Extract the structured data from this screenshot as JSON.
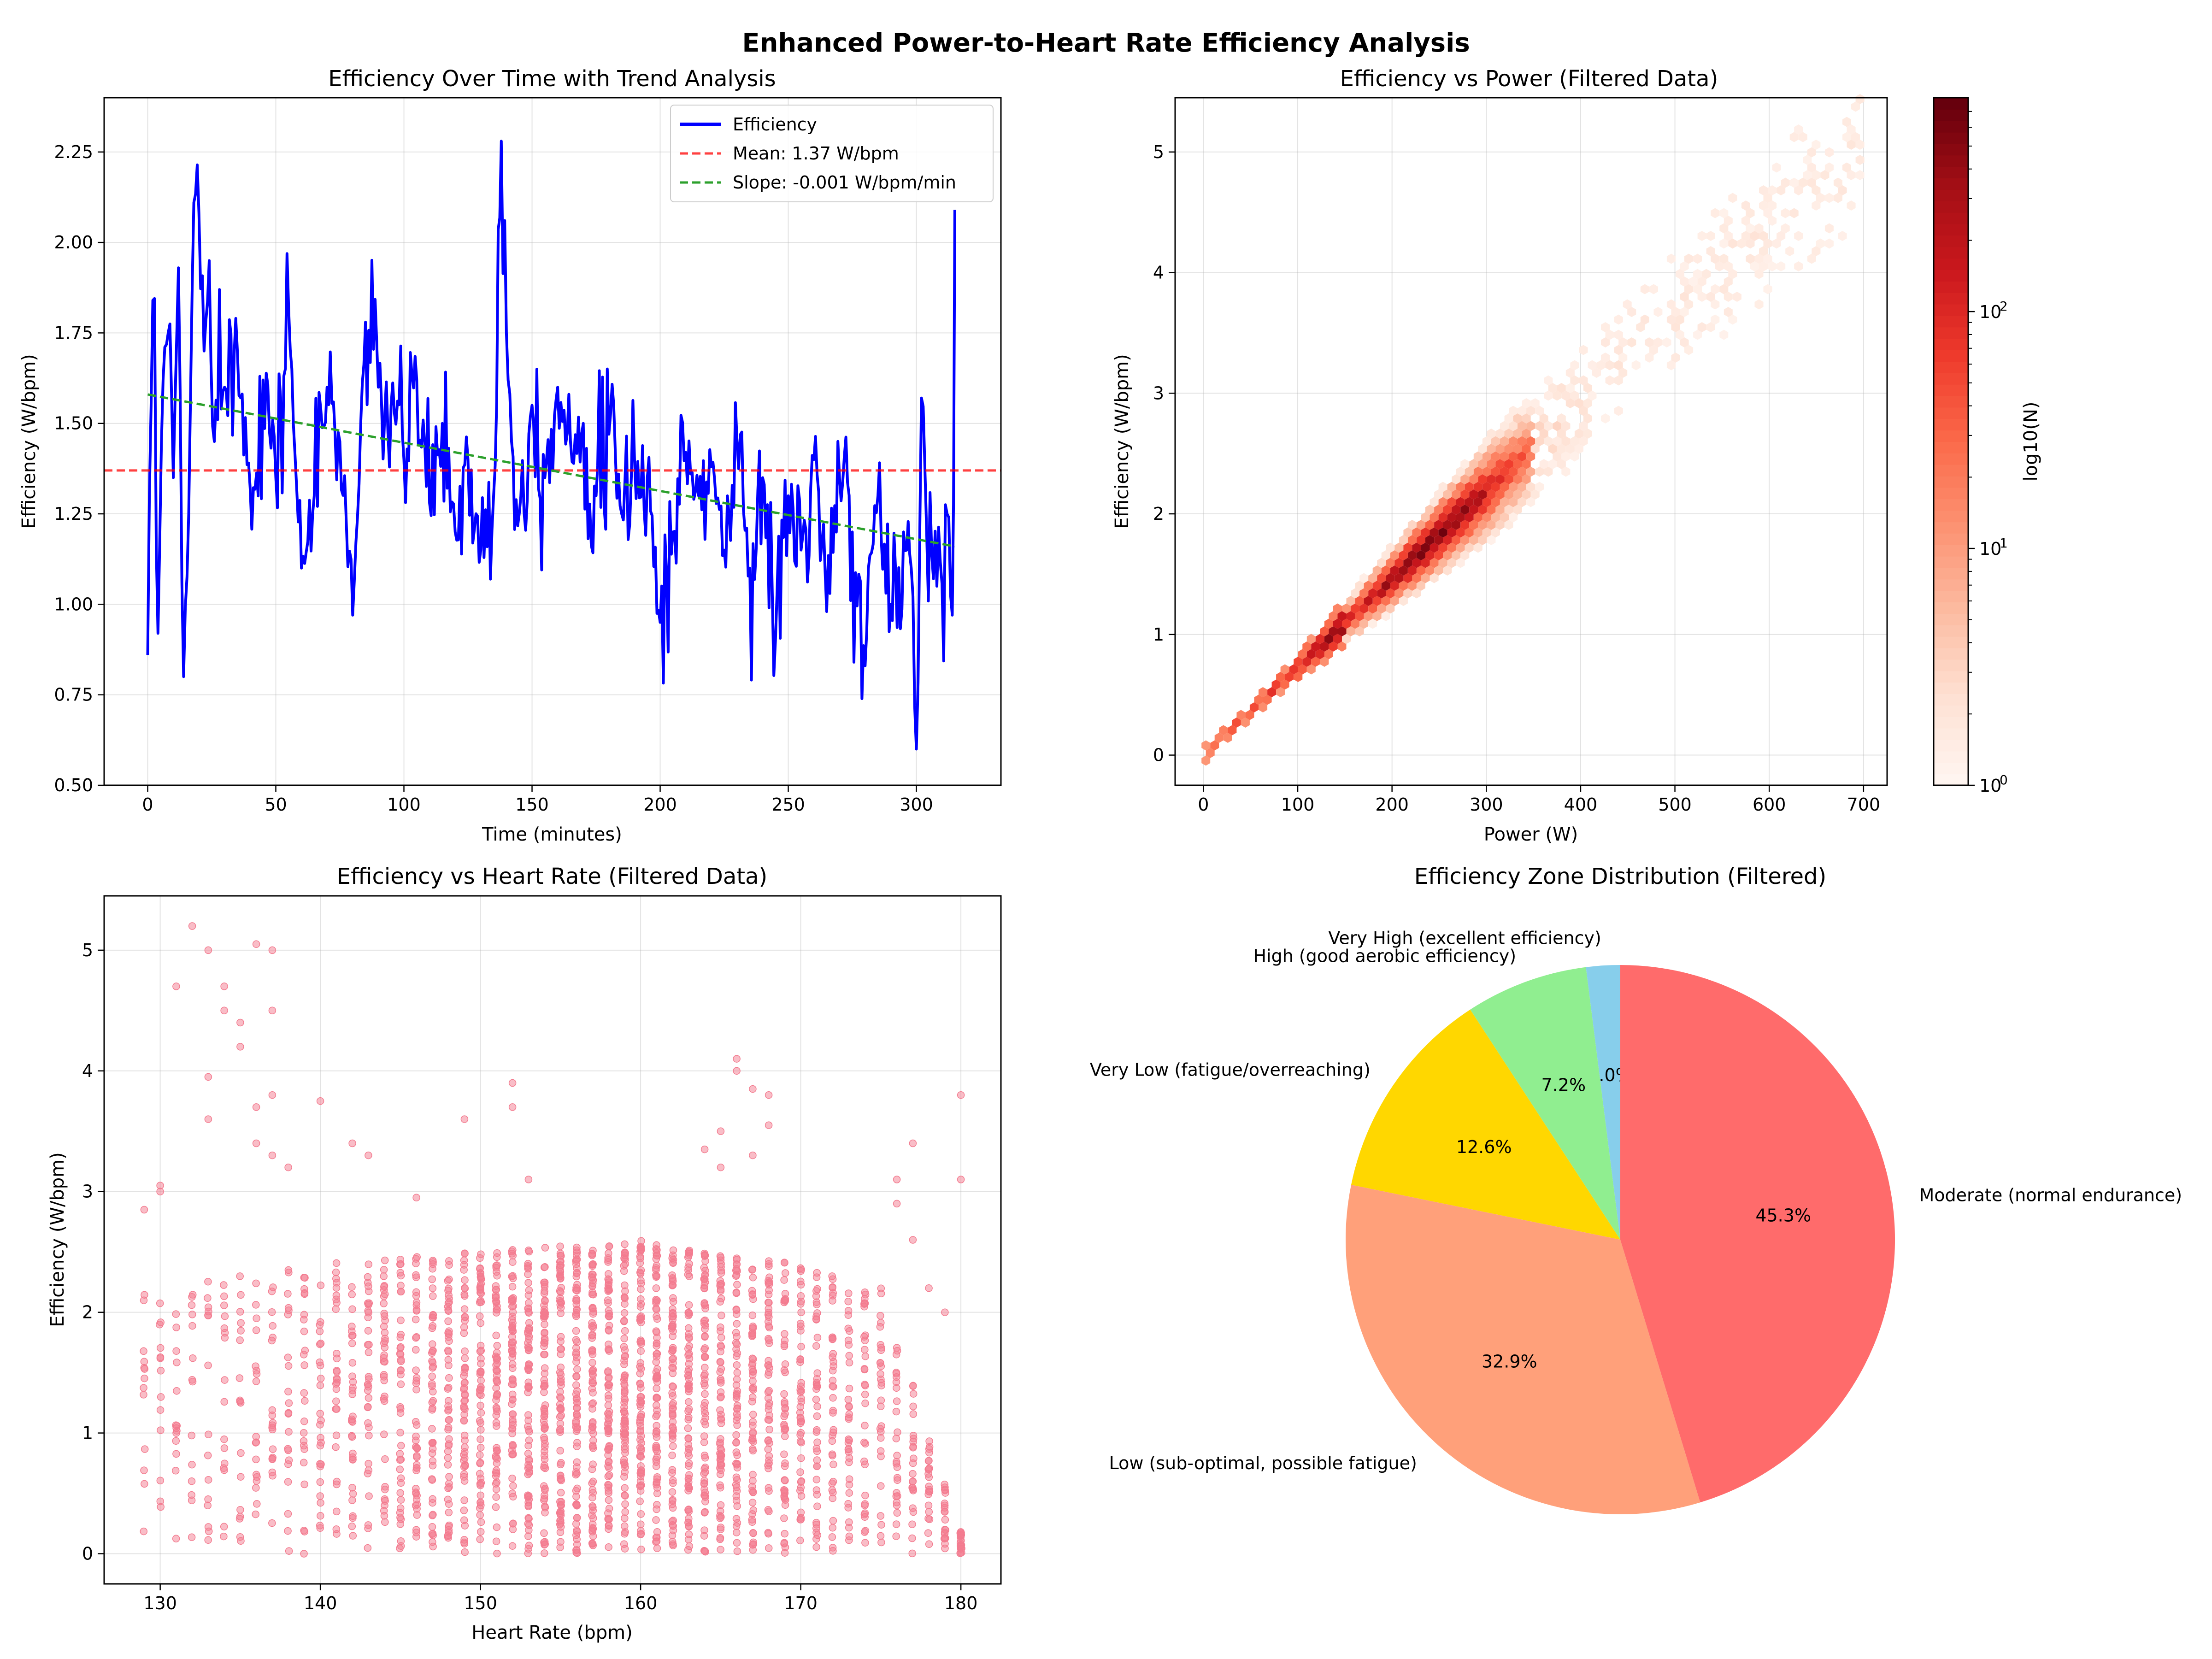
{
  "figure": {
    "suptitle": "Enhanced Power-to-Heart Rate Efficiency Analysis"
  },
  "chart_data": [
    {
      "type": "line",
      "title": "Efficiency Over Time with Trend Analysis",
      "xlabel": "Time (minutes)",
      "ylabel": "Efficiency (W/bpm)",
      "xlim": [
        -17,
        333
      ],
      "ylim": [
        0.5,
        2.4
      ],
      "xticks": [
        0,
        50,
        100,
        150,
        200,
        250,
        300
      ],
      "yticks": [
        0.5,
        0.75,
        1.0,
        1.25,
        1.5,
        1.75,
        2.0,
        2.25
      ],
      "ytick_labels": [
        "0.50",
        "0.75",
        "1.00",
        "1.25",
        "1.50",
        "1.75",
        "2.00",
        "2.25"
      ],
      "grid": true,
      "legend_position": "upper right",
      "series": [
        {
          "name": "Efficiency",
          "color": "#0000ff",
          "style": "solid",
          "x": [
            0,
            2,
            4,
            6,
            8,
            10,
            12,
            14,
            16,
            18,
            20,
            22,
            24,
            26,
            28,
            30,
            35,
            40,
            45,
            50,
            55,
            60,
            65,
            70,
            75,
            80,
            85,
            90,
            95,
            100,
            105,
            110,
            115,
            120,
            125,
            130,
            135,
            138,
            140,
            142,
            145,
            150,
            155,
            160,
            165,
            170,
            175,
            180,
            185,
            190,
            195,
            200,
            205,
            210,
            215,
            220,
            225,
            230,
            235,
            240,
            245,
            250,
            255,
            260,
            265,
            270,
            275,
            280,
            285,
            290,
            295,
            298,
            300,
            302,
            304,
            308,
            312,
            314,
            315
          ],
          "values": [
            0.86,
            1.84,
            0.92,
            1.62,
            1.75,
            1.35,
            1.93,
            0.8,
            1.25,
            2.11,
            2.08,
            1.7,
            1.95,
            1.45,
            1.87,
            1.6,
            1.7,
            1.32,
            1.62,
            1.35,
            1.82,
            1.1,
            1.3,
            1.6,
            1.45,
            0.97,
            1.78,
            1.6,
            1.55,
            1.4,
            1.62,
            1.28,
            1.5,
            1.2,
            1.4,
            1.15,
            1.3,
            2.3,
            1.75,
            1.45,
            1.25,
            1.55,
            1.35,
            1.6,
            1.45,
            1.5,
            1.3,
            1.47,
            1.25,
            1.4,
            1.35,
            0.95,
            1.2,
            1.42,
            1.3,
            1.38,
            1.15,
            1.45,
            1.1,
            1.35,
            0.9,
            1.3,
            1.15,
            1.4,
            0.98,
            1.35,
            1.2,
            0.83,
            1.3,
            1.0,
            1.2,
            1.1,
            0.58,
            1.57,
            1.2,
            1.05,
            1.25,
            0.97,
            2.09
          ]
        },
        {
          "name": "Mean: 1.37 W/bpm",
          "color": "#ff0000",
          "style": "dashed",
          "x": [
            -17,
            333
          ],
          "values": [
            1.37,
            1.37
          ]
        },
        {
          "name": "Slope: -0.001 W/bpm/min",
          "color": "#2ca02c",
          "style": "dashed",
          "x": [
            0,
            315
          ],
          "values": [
            1.58,
            1.16
          ]
        }
      ]
    },
    {
      "type": "heatmap",
      "subtype": "hexbin",
      "title": "Efficiency vs Power (Filtered Data)",
      "xlabel": "Power (W)",
      "ylabel": "Efficiency (W/bpm)",
      "xlim": [
        -30,
        725
      ],
      "ylim": [
        -0.25,
        5.45
      ],
      "xticks": [
        0,
        100,
        200,
        300,
        400,
        500,
        600,
        700
      ],
      "yticks": [
        0,
        1,
        2,
        3,
        4,
        5
      ],
      "grid": true,
      "colormap": "Reds",
      "colorbar": {
        "label": "log10(N)",
        "scale": "log",
        "range": [
          1,
          800
        ],
        "ticks": [
          1,
          10,
          100
        ],
        "tick_labels": [
          "10",
          "10",
          "10"
        ],
        "tick_exponents": [
          "0",
          "1",
          "2"
        ]
      },
      "density_model": {
        "slope_efficiency_per_watt": 0.0073,
        "peak_power": 235,
        "band_spread_by_power": [
          {
            "power": 0,
            "spread": 0.02
          },
          {
            "power": 100,
            "spread": 0.1
          },
          {
            "power": 200,
            "spread": 0.25
          },
          {
            "power": 300,
            "spread": 0.4
          },
          {
            "power": 400,
            "spread": 0.4
          },
          {
            "power": 500,
            "spread": 0.45
          },
          {
            "power": 600,
            "spread": 0.5
          },
          {
            "power": 700,
            "spread": 0.6
          }
        ]
      }
    },
    {
      "type": "scatter",
      "title": "Efficiency vs Heart Rate (Filtered Data)",
      "xlabel": "Heart Rate (bpm)",
      "ylabel": "Efficiency (W/bpm)",
      "xlim": [
        126.5,
        182.5
      ],
      "ylim": [
        -0.25,
        5.45
      ],
      "xticks": [
        130,
        140,
        150,
        160,
        170,
        180
      ],
      "yticks": [
        0,
        1,
        2,
        3,
        4,
        5
      ],
      "grid": true,
      "color": "#f37b8f",
      "hr_range": [
        129,
        180
      ],
      "column_upper_bound_by_hr": [
        {
          "hr": 129,
          "upper": 2.2
        },
        {
          "hr": 140,
          "upper": 2.4
        },
        {
          "hr": 150,
          "upper": 2.5
        },
        {
          "hr": 160,
          "upper": 2.6
        },
        {
          "hr": 170,
          "upper": 2.4
        },
        {
          "hr": 175,
          "upper": 2.2
        },
        {
          "hr": 178,
          "upper": 1.0
        },
        {
          "hr": 180,
          "upper": 0.2
        }
      ],
      "outlier_points": [
        {
          "hr": 132,
          "eff": 5.2
        },
        {
          "hr": 133,
          "eff": 5.0
        },
        {
          "hr": 134,
          "eff": 4.7
        },
        {
          "hr": 134,
          "eff": 4.5
        },
        {
          "hr": 135,
          "eff": 4.4
        },
        {
          "hr": 135,
          "eff": 4.2
        },
        {
          "hr": 136,
          "eff": 5.05
        },
        {
          "hr": 137,
          "eff": 5.0
        },
        {
          "hr": 137,
          "eff": 4.5
        },
        {
          "hr": 131,
          "eff": 4.7
        },
        {
          "hr": 133,
          "eff": 3.95
        },
        {
          "hr": 136,
          "eff": 3.7
        },
        {
          "hr": 137,
          "eff": 3.8
        },
        {
          "hr": 140,
          "eff": 3.75
        },
        {
          "hr": 133,
          "eff": 3.6
        },
        {
          "hr": 136,
          "eff": 3.4
        },
        {
          "hr": 137,
          "eff": 3.3
        },
        {
          "hr": 138,
          "eff": 3.2
        },
        {
          "hr": 142,
          "eff": 3.4
        },
        {
          "hr": 152,
          "eff": 3.9
        },
        {
          "hr": 152,
          "eff": 3.7
        },
        {
          "hr": 149,
          "eff": 3.6
        },
        {
          "hr": 166,
          "eff": 4.1
        },
        {
          "hr": 166,
          "eff": 4.0
        },
        {
          "hr": 167,
          "eff": 3.85
        },
        {
          "hr": 168,
          "eff": 3.8
        },
        {
          "hr": 168,
          "eff": 3.55
        },
        {
          "hr": 165,
          "eff": 3.5
        },
        {
          "hr": 167,
          "eff": 3.3
        },
        {
          "hr": 164,
          "eff": 3.35
        },
        {
          "hr": 165,
          "eff": 3.2
        },
        {
          "hr": 180,
          "eff": 3.8
        },
        {
          "hr": 177,
          "eff": 3.4
        },
        {
          "hr": 176,
          "eff": 3.1
        },
        {
          "hr": 180,
          "eff": 3.1
        },
        {
          "hr": 130,
          "eff": 3.05
        },
        {
          "hr": 130,
          "eff": 3.0
        },
        {
          "hr": 129,
          "eff": 2.85
        },
        {
          "hr": 143,
          "eff": 3.3
        },
        {
          "hr": 153,
          "eff": 3.1
        },
        {
          "hr": 146,
          "eff": 2.95
        },
        {
          "hr": 176,
          "eff": 2.9
        },
        {
          "hr": 177,
          "eff": 2.6
        },
        {
          "hr": 178,
          "eff": 2.2
        },
        {
          "hr": 179,
          "eff": 2.0
        },
        {
          "hr": 178,
          "eff": 0.7
        },
        {
          "hr": 179,
          "eff": 0.55
        },
        {
          "hr": 180,
          "eff": 0.15
        },
        {
          "hr": 172,
          "eff": 0.05
        },
        {
          "hr": 176,
          "eff": 0.4
        },
        {
          "hr": 177,
          "eff": 0.6
        },
        {
          "hr": 174,
          "eff": 0.4
        }
      ]
    },
    {
      "type": "pie",
      "title": "Efficiency Zone Distribution (Filtered)",
      "start_angle_deg": 90,
      "direction": "counterclockwise",
      "slices": [
        {
          "label": "Very High (excellent efficiency)",
          "value": 2.0,
          "pct_label": "2.0%",
          "color": "#87ceeb"
        },
        {
          "label": "High (good aerobic efficiency)",
          "value": 7.2,
          "pct_label": "7.2%",
          "color": "#90ee90"
        },
        {
          "label": "Very Low (fatigue/overreaching)",
          "value": 12.6,
          "pct_label": "12.6%",
          "color": "#ffd700"
        },
        {
          "label": "Low (sub-optimal, possible fatigue)",
          "value": 32.9,
          "pct_label": "32.9%",
          "color": "#ffa07a"
        },
        {
          "label": "Moderate (normal endurance)",
          "value": 45.3,
          "pct_label": "45.3%",
          "color": "#ff6b6b"
        }
      ]
    }
  ]
}
